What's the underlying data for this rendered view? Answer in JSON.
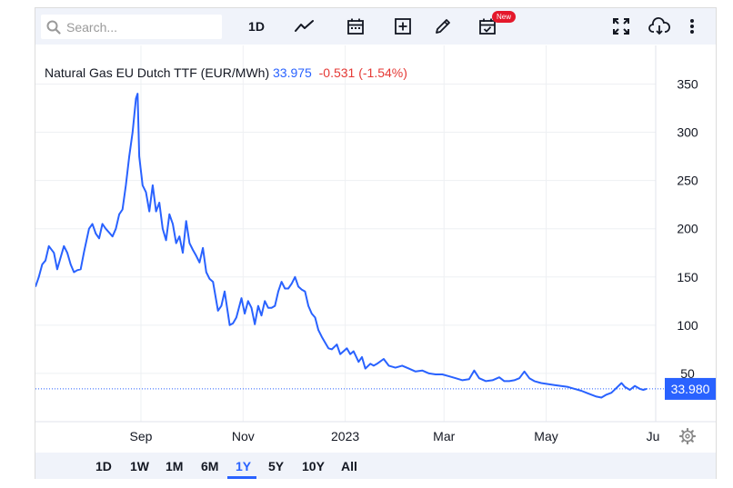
{
  "search": {
    "placeholder": "Search..."
  },
  "toolbar": {
    "interval_label": "1D",
    "new_badge": "New"
  },
  "legend": {
    "instrument": "Natural Gas EU Dutch TTF (EUR/MWh)",
    "last": "33.975",
    "change": "-0.531 (-1.54%)"
  },
  "ranges": [
    "1D",
    "1W",
    "1M",
    "6M",
    "1Y",
    "5Y",
    "10Y",
    "All"
  ],
  "active_range": "1Y",
  "colors": {
    "line": "#2962ff",
    "negative": "#e53935",
    "price_tag": "#2962ff"
  },
  "chart_data": {
    "type": "line",
    "title": "Natural Gas EU Dutch TTF (EUR/MWh)",
    "x_labels": [
      "Sep",
      "Nov",
      "2023",
      "Mar",
      "May",
      "Ju"
    ],
    "y_ticks": [
      50,
      100,
      150,
      200,
      250,
      300,
      350
    ],
    "ylim": [
      0,
      390
    ],
    "last_price_label": "33.980",
    "last_price": 33.98,
    "grid": true,
    "series": [
      {
        "points": [
          [
            "2022-06-30",
            140
          ],
          [
            "2022-07-02",
            150
          ],
          [
            "2022-07-04",
            163
          ],
          [
            "2022-07-06",
            167
          ],
          [
            "2022-07-08",
            182
          ],
          [
            "2022-07-11",
            175
          ],
          [
            "2022-07-13",
            158
          ],
          [
            "2022-07-15",
            170
          ],
          [
            "2022-07-17",
            182
          ],
          [
            "2022-07-19",
            175
          ],
          [
            "2022-07-21",
            163
          ],
          [
            "2022-07-23",
            155
          ],
          [
            "2022-07-25",
            157
          ],
          [
            "2022-07-27",
            158
          ],
          [
            "2022-07-29",
            176
          ],
          [
            "2022-08-01",
            200
          ],
          [
            "2022-08-03",
            205
          ],
          [
            "2022-08-05",
            195
          ],
          [
            "2022-08-07",
            190
          ],
          [
            "2022-08-09",
            205
          ],
          [
            "2022-08-11",
            200
          ],
          [
            "2022-08-13",
            196
          ],
          [
            "2022-08-15",
            192
          ],
          [
            "2022-08-17",
            200
          ],
          [
            "2022-08-19",
            215
          ],
          [
            "2022-08-21",
            220
          ],
          [
            "2022-08-23",
            245
          ],
          [
            "2022-08-25",
            275
          ],
          [
            "2022-08-27",
            300
          ],
          [
            "2022-08-29",
            335
          ],
          [
            "2022-08-30",
            340
          ],
          [
            "2022-08-31",
            275
          ],
          [
            "2022-09-02",
            245
          ],
          [
            "2022-09-04",
            238
          ],
          [
            "2022-09-06",
            218
          ],
          [
            "2022-09-08",
            245
          ],
          [
            "2022-09-10",
            218
          ],
          [
            "2022-09-12",
            227
          ],
          [
            "2022-09-14",
            200
          ],
          [
            "2022-09-16",
            188
          ],
          [
            "2022-09-18",
            215
          ],
          [
            "2022-09-20",
            205
          ],
          [
            "2022-09-22",
            185
          ],
          [
            "2022-09-24",
            192
          ],
          [
            "2022-09-26",
            175
          ],
          [
            "2022-09-28",
            208
          ],
          [
            "2022-09-30",
            185
          ],
          [
            "2022-10-02",
            178
          ],
          [
            "2022-10-04",
            172
          ],
          [
            "2022-10-06",
            165
          ],
          [
            "2022-10-08",
            180
          ],
          [
            "2022-10-10",
            155
          ],
          [
            "2022-10-12",
            148
          ],
          [
            "2022-10-14",
            145
          ],
          [
            "2022-10-17",
            115
          ],
          [
            "2022-10-19",
            120
          ],
          [
            "2022-10-21",
            135
          ],
          [
            "2022-10-24",
            100
          ],
          [
            "2022-10-26",
            102
          ],
          [
            "2022-10-28",
            108
          ],
          [
            "2022-10-31",
            128
          ],
          [
            "2022-11-02",
            112
          ],
          [
            "2022-11-04",
            125
          ],
          [
            "2022-11-06",
            118
          ],
          [
            "2022-11-08",
            101
          ],
          [
            "2022-11-10",
            120
          ],
          [
            "2022-11-12",
            110
          ],
          [
            "2022-11-14",
            125
          ],
          [
            "2022-11-16",
            118
          ],
          [
            "2022-11-18",
            118
          ],
          [
            "2022-11-20",
            120
          ],
          [
            "2022-11-22",
            135
          ],
          [
            "2022-11-24",
            145
          ],
          [
            "2022-11-26",
            138
          ],
          [
            "2022-11-28",
            138
          ],
          [
            "2022-11-30",
            143
          ],
          [
            "2022-12-02",
            150
          ],
          [
            "2022-12-04",
            140
          ],
          [
            "2022-12-06",
            137
          ],
          [
            "2022-12-08",
            135
          ],
          [
            "2022-12-10",
            120
          ],
          [
            "2022-12-12",
            112
          ],
          [
            "2022-12-14",
            108
          ],
          [
            "2022-12-16",
            95
          ],
          [
            "2022-12-18",
            88
          ],
          [
            "2022-12-20",
            82
          ],
          [
            "2022-12-22",
            76
          ],
          [
            "2022-12-24",
            75
          ],
          [
            "2022-12-27",
            80
          ],
          [
            "2022-12-29",
            70
          ],
          [
            "2023-01-02",
            76
          ],
          [
            "2023-01-04",
            70
          ],
          [
            "2023-01-06",
            73
          ],
          [
            "2023-01-09",
            62
          ],
          [
            "2023-01-11",
            67
          ],
          [
            "2023-01-13",
            55
          ],
          [
            "2023-01-16",
            60
          ],
          [
            "2023-01-18",
            58
          ],
          [
            "2023-01-20",
            60
          ],
          [
            "2023-01-24",
            65
          ],
          [
            "2023-01-27",
            58
          ],
          [
            "2023-01-31",
            56
          ],
          [
            "2023-02-04",
            58
          ],
          [
            "2023-02-08",
            55
          ],
          [
            "2023-02-12",
            52
          ],
          [
            "2023-02-16",
            53
          ],
          [
            "2023-02-20",
            50
          ],
          [
            "2023-02-24",
            49
          ],
          [
            "2023-02-28",
            49
          ],
          [
            "2023-03-04",
            47
          ],
          [
            "2023-03-08",
            45
          ],
          [
            "2023-03-12",
            43
          ],
          [
            "2023-03-16",
            44
          ],
          [
            "2023-03-19",
            53
          ],
          [
            "2023-03-22",
            45
          ],
          [
            "2023-03-26",
            42
          ],
          [
            "2023-03-30",
            43
          ],
          [
            "2023-04-03",
            46
          ],
          [
            "2023-04-06",
            42
          ],
          [
            "2023-04-09",
            42
          ],
          [
            "2023-04-12",
            43
          ],
          [
            "2023-04-15",
            45
          ],
          [
            "2023-04-18",
            52
          ],
          [
            "2023-04-21",
            45
          ],
          [
            "2023-04-24",
            42
          ],
          [
            "2023-04-28",
            40
          ],
          [
            "2023-05-02",
            39
          ],
          [
            "2023-05-06",
            38
          ],
          [
            "2023-05-10",
            37
          ],
          [
            "2023-05-14",
            36
          ],
          [
            "2023-05-18",
            34
          ],
          [
            "2023-05-22",
            32
          ],
          [
            "2023-05-25",
            30
          ],
          [
            "2023-05-28",
            28
          ],
          [
            "2023-05-31",
            26
          ],
          [
            "2023-06-03",
            25
          ],
          [
            "2023-06-06",
            28
          ],
          [
            "2023-06-09",
            30
          ],
          [
            "2023-06-12",
            35
          ],
          [
            "2023-06-15",
            40
          ],
          [
            "2023-06-17",
            36
          ],
          [
            "2023-06-20",
            33
          ],
          [
            "2023-06-23",
            37
          ],
          [
            "2023-06-26",
            34
          ],
          [
            "2023-06-28",
            33
          ],
          [
            "2023-06-30",
            34
          ]
        ]
      }
    ]
  }
}
